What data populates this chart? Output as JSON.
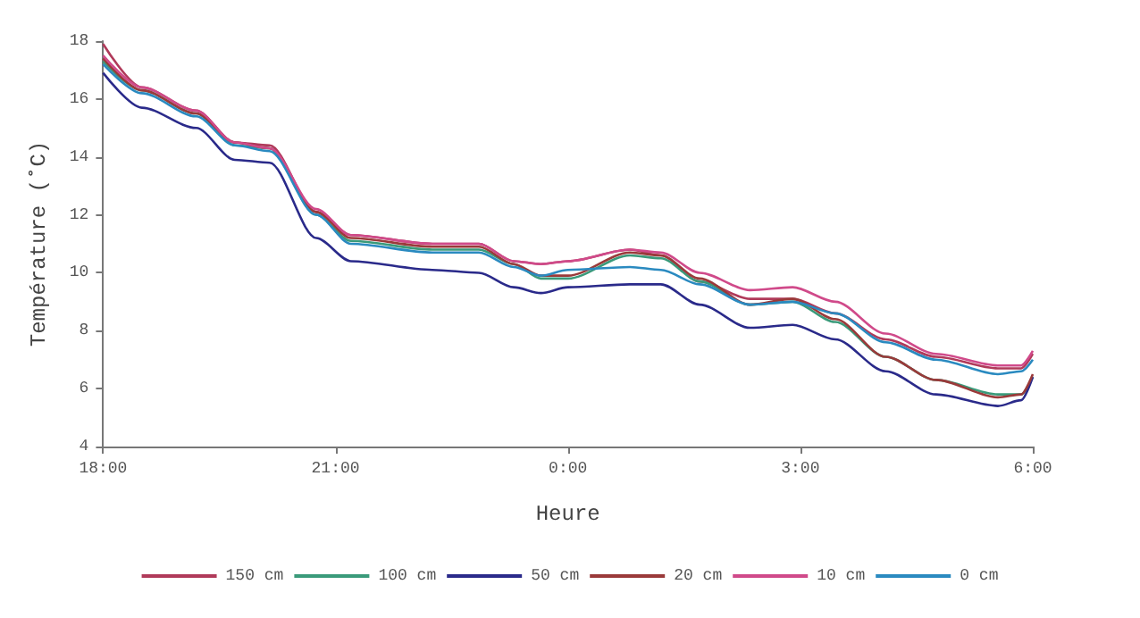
{
  "chart_data": {
    "type": "line",
    "xlabel": "Heure",
    "ylabel": "Température (˚C)",
    "x": [
      "2000-01-01T18:00",
      "2000-01-01T18:30",
      "2000-01-01T19:12",
      "2000-01-01T19:42",
      "2000-01-01T20:09",
      "2000-01-01T20:45",
      "2000-01-01T21:12",
      "2000-01-01T22:15",
      "2000-01-01T22:51",
      "2000-01-01T23:18",
      "2000-01-01T23:39",
      "2000-01-02T00:00",
      "2000-01-02T00:48",
      "2000-01-02T01:12",
      "2000-01-02T01:42",
      "2000-01-02T02:21",
      "2000-01-02T02:54",
      "2000-01-02T03:27",
      "2000-01-02T04:06",
      "2000-01-02T04:45",
      "2000-01-02T05:33",
      "2000-01-02T05:51",
      "2000-01-02T06:00"
    ],
    "xlim": [
      "2000-01-01T18:00",
      "2000-01-02T06:00"
    ],
    "xticks": [
      {
        "value": "2000-01-01T18:00",
        "label": "18:00"
      },
      {
        "value": "2000-01-01T21:00",
        "label": "21:00"
      },
      {
        "value": "2000-01-02T00:00",
        "label": "0:00"
      },
      {
        "value": "2000-01-02T03:00",
        "label": "3:00"
      },
      {
        "value": "2000-01-02T06:00",
        "label": "6:00"
      }
    ],
    "ylim": [
      4,
      18
    ],
    "yticks": [
      4,
      6,
      8,
      10,
      12,
      14,
      16,
      18
    ],
    "grid": false,
    "legend": "bottom",
    "marker": "none",
    "line_style": "solid",
    "series": [
      {
        "name": "150 cm",
        "color": "#b03a5a",
        "values": [
          17.9,
          16.4,
          15.6,
          14.5,
          14.4,
          12.1,
          11.3,
          11.0,
          11.0,
          10.4,
          10.3,
          10.4,
          10.8,
          10.6,
          9.7,
          9.1,
          9.1,
          8.6,
          7.7,
          7.1,
          6.7,
          6.7,
          7.2
        ]
      },
      {
        "name": "100 cm",
        "color": "#3a9a7a",
        "values": [
          17.3,
          16.3,
          15.5,
          14.4,
          14.3,
          12.0,
          11.1,
          10.8,
          10.8,
          10.3,
          9.8,
          9.8,
          10.6,
          10.5,
          9.7,
          8.9,
          9.0,
          8.3,
          7.1,
          6.3,
          5.8,
          5.8,
          6.4
        ]
      },
      {
        "name": "50 cm",
        "color": "#2a2a8a",
        "values": [
          16.9,
          15.7,
          15.0,
          13.9,
          13.8,
          11.2,
          10.4,
          10.1,
          10.0,
          9.5,
          9.3,
          9.5,
          9.6,
          9.6,
          8.9,
          8.1,
          8.2,
          7.7,
          6.6,
          5.8,
          5.4,
          5.6,
          6.4
        ]
      },
      {
        "name": "20 cm",
        "color": "#9a3a3a",
        "values": [
          17.4,
          16.3,
          15.5,
          14.5,
          14.3,
          12.1,
          11.2,
          10.9,
          10.9,
          10.3,
          9.9,
          9.9,
          10.7,
          10.6,
          9.8,
          8.9,
          9.1,
          8.4,
          7.1,
          6.3,
          5.7,
          5.8,
          6.5
        ]
      },
      {
        "name": "10 cm",
        "color": "#d04a8a",
        "values": [
          17.5,
          16.4,
          15.6,
          14.5,
          14.3,
          12.2,
          11.3,
          11.0,
          11.0,
          10.4,
          10.3,
          10.4,
          10.8,
          10.7,
          10.0,
          9.4,
          9.5,
          9.0,
          7.9,
          7.2,
          6.8,
          6.8,
          7.3
        ]
      },
      {
        "name": "0 cm",
        "color": "#2a8ac0",
        "values": [
          17.2,
          16.2,
          15.4,
          14.4,
          14.2,
          12.0,
          11.0,
          10.7,
          10.7,
          10.2,
          9.9,
          10.1,
          10.2,
          10.1,
          9.6,
          8.9,
          9.0,
          8.6,
          7.6,
          7.0,
          6.5,
          6.6,
          7.0
        ]
      }
    ]
  }
}
